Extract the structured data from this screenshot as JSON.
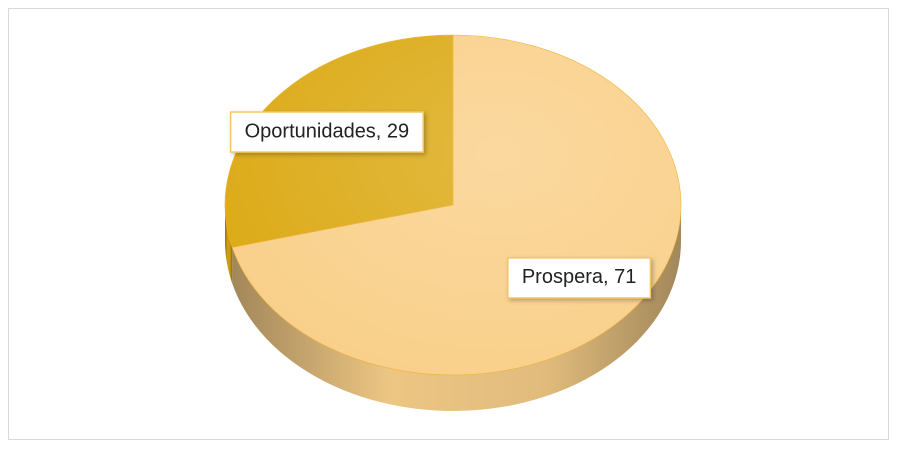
{
  "chart_data": {
    "type": "pie",
    "categories": [
      "Prospera",
      "Oportunidades"
    ],
    "values": [
      71,
      29
    ],
    "value_labels": [
      "Prospera, 71",
      "Oportunidades, 29"
    ],
    "colors": [
      "#f9d08a",
      "#dcaa16"
    ]
  }
}
